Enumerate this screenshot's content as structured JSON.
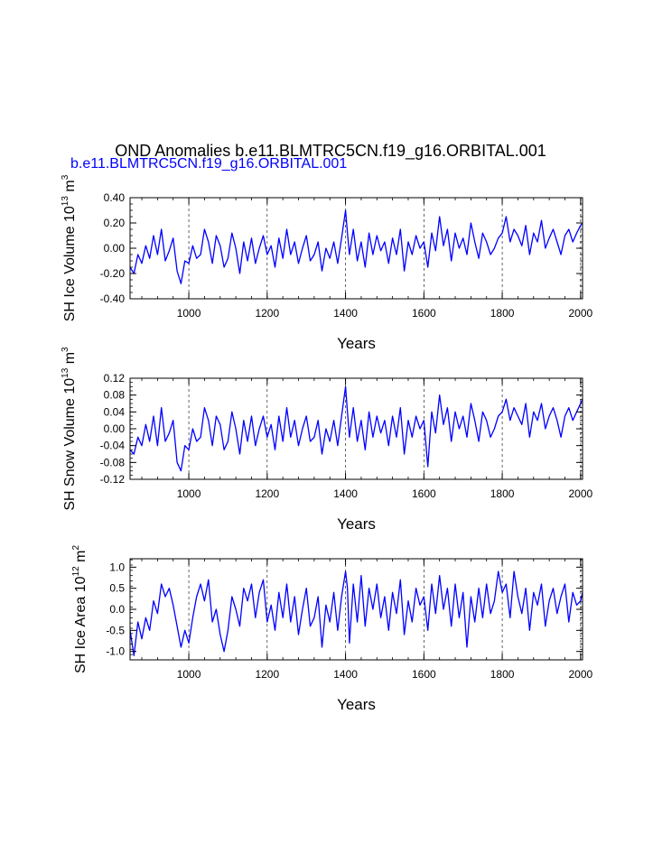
{
  "figure": {
    "title": "OND Anomalies b.e11.BLMTRC5CN.f19_g16.ORBITAL.001",
    "subtitle": "b.e11.BLMTRC5CN.f19_g16.ORBITAL.001",
    "series_color": "#0000ff"
  },
  "chart_data": [
    {
      "type": "line",
      "name": "sh-ice-volume",
      "ylabel": {
        "text": "SH Ice Volume 10",
        "exp": "13",
        "unit": " m",
        "unit_exp": "3"
      },
      "xlabel": "Years",
      "xlim": [
        850,
        2005
      ],
      "ylim": [
        -0.4,
        0.4
      ],
      "yticks": [
        -0.4,
        -0.2,
        0.0,
        0.2,
        0.4
      ],
      "ytick_labels": [
        "-0.40",
        "-0.20",
        "0.00",
        "0.20",
        "0.40"
      ],
      "xticks": [
        1000,
        1200,
        1400,
        1600,
        1800,
        2000
      ],
      "xtick_labels": [
        "1000",
        "1200",
        "1400",
        "1600",
        "1800",
        "2000"
      ],
      "gridlines_x": [
        1000,
        1200,
        1400,
        1600,
        1800,
        2000
      ],
      "series": [
        {
          "name": "b.e11.BLMTRC5CN.f19_g16.ORBITAL.001",
          "x": [
            850,
            860,
            870,
            880,
            890,
            900,
            910,
            920,
            930,
            940,
            950,
            960,
            970,
            980,
            990,
            1000,
            1010,
            1020,
            1030,
            1040,
            1050,
            1060,
            1070,
            1080,
            1090,
            1100,
            1110,
            1120,
            1130,
            1140,
            1150,
            1160,
            1170,
            1180,
            1190,
            1200,
            1210,
            1220,
            1230,
            1240,
            1250,
            1260,
            1270,
            1280,
            1290,
            1300,
            1310,
            1320,
            1330,
            1340,
            1350,
            1360,
            1370,
            1380,
            1390,
            1400,
            1405,
            1410,
            1420,
            1430,
            1440,
            1450,
            1460,
            1470,
            1480,
            1490,
            1500,
            1510,
            1520,
            1530,
            1540,
            1550,
            1560,
            1570,
            1580,
            1590,
            1600,
            1610,
            1620,
            1630,
            1640,
            1650,
            1660,
            1670,
            1680,
            1690,
            1700,
            1710,
            1720,
            1730,
            1740,
            1750,
            1760,
            1770,
            1780,
            1790,
            1800,
            1810,
            1820,
            1830,
            1840,
            1850,
            1860,
            1870,
            1880,
            1890,
            1900,
            1910,
            1920,
            1930,
            1940,
            1950,
            1960,
            1970,
            1980,
            1990,
            2000,
            2005
          ],
          "y": [
            -0.15,
            -0.2,
            -0.05,
            -0.12,
            0.02,
            -0.08,
            0.1,
            -0.05,
            0.15,
            -0.1,
            -0.02,
            0.08,
            -0.18,
            -0.28,
            -0.1,
            -0.12,
            0.02,
            -0.08,
            -0.05,
            0.15,
            0.05,
            -0.12,
            0.1,
            0.02,
            -0.15,
            -0.08,
            0.12,
            0.0,
            -0.2,
            0.05,
            -0.1,
            0.08,
            -0.12,
            0.0,
            0.1,
            -0.05,
            0.02,
            -0.15,
            0.08,
            -0.08,
            0.15,
            -0.05,
            0.05,
            -0.12,
            0.0,
            0.1,
            -0.1,
            -0.05,
            0.05,
            -0.18,
            0.0,
            -0.08,
            0.05,
            -0.12,
            0.08,
            0.3,
            0.12,
            -0.05,
            0.15,
            -0.1,
            0.05,
            -0.15,
            0.12,
            -0.05,
            0.1,
            -0.02,
            0.05,
            -0.12,
            0.08,
            -0.05,
            0.15,
            -0.18,
            0.05,
            -0.05,
            0.1,
            0.0,
            0.05,
            -0.15,
            0.12,
            -0.02,
            0.25,
            0.02,
            0.15,
            -0.1,
            0.12,
            0.0,
            0.08,
            -0.05,
            0.2,
            0.05,
            -0.08,
            0.12,
            0.05,
            -0.05,
            0.0,
            0.08,
            0.12,
            0.25,
            0.05,
            0.15,
            0.1,
            0.02,
            0.18,
            -0.05,
            0.12,
            0.05,
            0.22,
            0.0,
            0.08,
            0.15,
            0.05,
            -0.05,
            0.1,
            0.15,
            0.05,
            0.12,
            0.18,
            0.2
          ]
        }
      ]
    },
    {
      "type": "line",
      "name": "sh-snow-volume",
      "ylabel": {
        "text": "SH Snow Volume 10",
        "exp": "13",
        "unit": " m",
        "unit_exp": "3"
      },
      "xlabel": "Years",
      "xlim": [
        850,
        2005
      ],
      "ylim": [
        -0.12,
        0.12
      ],
      "yticks": [
        -0.12,
        -0.08,
        -0.04,
        0.0,
        0.04,
        0.08,
        0.12
      ],
      "ytick_labels": [
        "-0.12",
        "-0.08",
        "-0.04",
        "0.00",
        "0.04",
        "0.08",
        "0.12"
      ],
      "xticks": [
        1000,
        1200,
        1400,
        1600,
        1800,
        2000
      ],
      "xtick_labels": [
        "1000",
        "1200",
        "1400",
        "1600",
        "1800",
        "2000"
      ],
      "gridlines_x": [
        1000,
        1200,
        1400,
        1600,
        1800,
        2000
      ],
      "series": [
        {
          "name": "b.e11.BLMTRC5CN.f19_g16.ORBITAL.001",
          "x": [
            850,
            860,
            870,
            880,
            890,
            900,
            910,
            920,
            930,
            940,
            950,
            960,
            970,
            980,
            990,
            1000,
            1010,
            1020,
            1030,
            1040,
            1050,
            1060,
            1070,
            1080,
            1090,
            1100,
            1110,
            1120,
            1130,
            1140,
            1150,
            1160,
            1170,
            1180,
            1190,
            1200,
            1210,
            1220,
            1230,
            1240,
            1250,
            1260,
            1270,
            1280,
            1290,
            1300,
            1310,
            1320,
            1330,
            1340,
            1350,
            1360,
            1370,
            1380,
            1390,
            1400,
            1405,
            1410,
            1420,
            1430,
            1440,
            1450,
            1460,
            1470,
            1480,
            1490,
            1500,
            1510,
            1520,
            1530,
            1540,
            1550,
            1560,
            1570,
            1580,
            1590,
            1600,
            1610,
            1620,
            1630,
            1640,
            1650,
            1660,
            1670,
            1680,
            1690,
            1700,
            1710,
            1720,
            1730,
            1740,
            1750,
            1760,
            1770,
            1780,
            1790,
            1800,
            1810,
            1820,
            1830,
            1840,
            1850,
            1860,
            1870,
            1880,
            1890,
            1900,
            1910,
            1920,
            1930,
            1940,
            1950,
            1960,
            1970,
            1980,
            1990,
            2000,
            2005
          ],
          "y": [
            -0.05,
            -0.06,
            -0.02,
            -0.04,
            0.01,
            -0.03,
            0.03,
            -0.04,
            0.05,
            -0.03,
            -0.01,
            0.02,
            -0.08,
            -0.1,
            -0.04,
            -0.05,
            0.0,
            -0.03,
            -0.02,
            0.05,
            0.02,
            -0.04,
            0.03,
            0.01,
            -0.05,
            -0.03,
            0.04,
            0.0,
            -0.06,
            0.02,
            -0.03,
            0.03,
            -0.04,
            0.0,
            0.03,
            -0.02,
            0.01,
            -0.05,
            0.03,
            -0.03,
            0.05,
            -0.02,
            0.02,
            -0.04,
            0.0,
            0.03,
            -0.03,
            -0.02,
            0.02,
            -0.06,
            0.0,
            -0.03,
            0.02,
            -0.04,
            0.03,
            0.1,
            0.04,
            -0.02,
            0.05,
            -0.03,
            0.02,
            -0.05,
            0.04,
            -0.02,
            0.03,
            -0.01,
            0.02,
            -0.04,
            0.03,
            -0.02,
            0.05,
            -0.06,
            0.02,
            -0.02,
            0.03,
            0.0,
            0.02,
            -0.09,
            0.04,
            -0.01,
            0.08,
            0.01,
            0.05,
            -0.03,
            0.04,
            0.0,
            0.03,
            -0.02,
            0.06,
            0.02,
            -0.03,
            0.04,
            0.02,
            -0.02,
            0.0,
            0.03,
            0.04,
            0.07,
            0.02,
            0.05,
            0.03,
            0.01,
            0.06,
            -0.02,
            0.04,
            0.02,
            0.06,
            0.0,
            0.03,
            0.05,
            0.02,
            -0.02,
            0.03,
            0.05,
            0.02,
            0.04,
            0.06,
            0.07
          ]
        }
      ]
    },
    {
      "type": "line",
      "name": "sh-ice-area",
      "ylabel": {
        "text": "SH Ice Area 10",
        "exp": "12",
        "unit": " m",
        "unit_exp": "2"
      },
      "xlabel": "Years",
      "xlim": [
        850,
        2005
      ],
      "ylim": [
        -1.2,
        1.2
      ],
      "yticks": [
        -1.0,
        -0.5,
        0.0,
        0.5,
        1.0
      ],
      "ytick_labels": [
        "-1.0",
        "-0.5",
        "0.0",
        "0.5",
        "1.0"
      ],
      "xticks": [
        1000,
        1200,
        1400,
        1600,
        1800,
        2000
      ],
      "xtick_labels": [
        "1000",
        "1200",
        "1400",
        "1600",
        "1800",
        "2000"
      ],
      "gridlines_x": [
        1000,
        1200,
        1400,
        1600,
        1800,
        2000
      ],
      "series": [
        {
          "name": "b.e11.BLMTRC5CN.f19_g16.ORBITAL.001",
          "x": [
            850,
            860,
            870,
            880,
            890,
            900,
            910,
            920,
            930,
            940,
            950,
            960,
            970,
            980,
            990,
            1000,
            1010,
            1020,
            1030,
            1040,
            1050,
            1060,
            1070,
            1080,
            1090,
            1100,
            1110,
            1120,
            1130,
            1140,
            1150,
            1160,
            1170,
            1180,
            1190,
            1200,
            1210,
            1220,
            1230,
            1240,
            1250,
            1260,
            1270,
            1280,
            1290,
            1300,
            1310,
            1320,
            1330,
            1340,
            1350,
            1360,
            1370,
            1380,
            1390,
            1400,
            1405,
            1410,
            1420,
            1430,
            1440,
            1450,
            1460,
            1470,
            1480,
            1490,
            1500,
            1510,
            1520,
            1530,
            1540,
            1550,
            1560,
            1570,
            1580,
            1590,
            1600,
            1610,
            1620,
            1630,
            1640,
            1650,
            1660,
            1670,
            1680,
            1690,
            1700,
            1710,
            1720,
            1730,
            1740,
            1750,
            1760,
            1770,
            1780,
            1790,
            1800,
            1810,
            1820,
            1830,
            1840,
            1850,
            1860,
            1870,
            1880,
            1890,
            1900,
            1910,
            1920,
            1930,
            1940,
            1950,
            1960,
            1970,
            1980,
            1990,
            2000,
            2005
          ],
          "y": [
            -0.5,
            -1.1,
            -0.3,
            -0.7,
            -0.2,
            -0.5,
            0.2,
            -0.1,
            0.6,
            0.3,
            0.5,
            0.1,
            -0.4,
            -0.9,
            -0.5,
            -0.8,
            -0.2,
            0.3,
            0.6,
            0.2,
            0.7,
            -0.3,
            0.0,
            -0.6,
            -1.0,
            -0.5,
            0.3,
            0.0,
            -0.4,
            0.5,
            0.2,
            0.6,
            -0.2,
            0.4,
            0.7,
            -0.3,
            0.1,
            -0.5,
            0.4,
            -0.2,
            0.6,
            -0.3,
            0.3,
            -0.6,
            0.0,
            0.5,
            -0.4,
            -0.2,
            0.3,
            -0.9,
            0.1,
            -0.3,
            0.4,
            -0.5,
            0.3,
            0.9,
            0.5,
            -0.8,
            0.6,
            -0.3,
            0.8,
            -0.4,
            0.5,
            0.0,
            0.6,
            -0.2,
            0.3,
            -0.5,
            0.4,
            -0.1,
            0.7,
            -0.6,
            0.2,
            -0.3,
            0.5,
            0.1,
            0.3,
            -0.5,
            0.6,
            -0.1,
            0.8,
            0.0,
            0.5,
            -0.4,
            0.6,
            -0.2,
            0.4,
            -0.9,
            0.3,
            -0.3,
            0.5,
            -0.2,
            0.6,
            -0.1,
            0.2,
            0.9,
            0.4,
            0.6,
            -0.2,
            0.9,
            0.3,
            -0.1,
            0.5,
            -0.5,
            0.4,
            0.1,
            0.6,
            -0.4,
            0.2,
            0.5,
            -0.1,
            0.3,
            0.6,
            -0.3,
            0.4,
            0.1,
            0.2,
            0.4
          ]
        }
      ]
    }
  ]
}
